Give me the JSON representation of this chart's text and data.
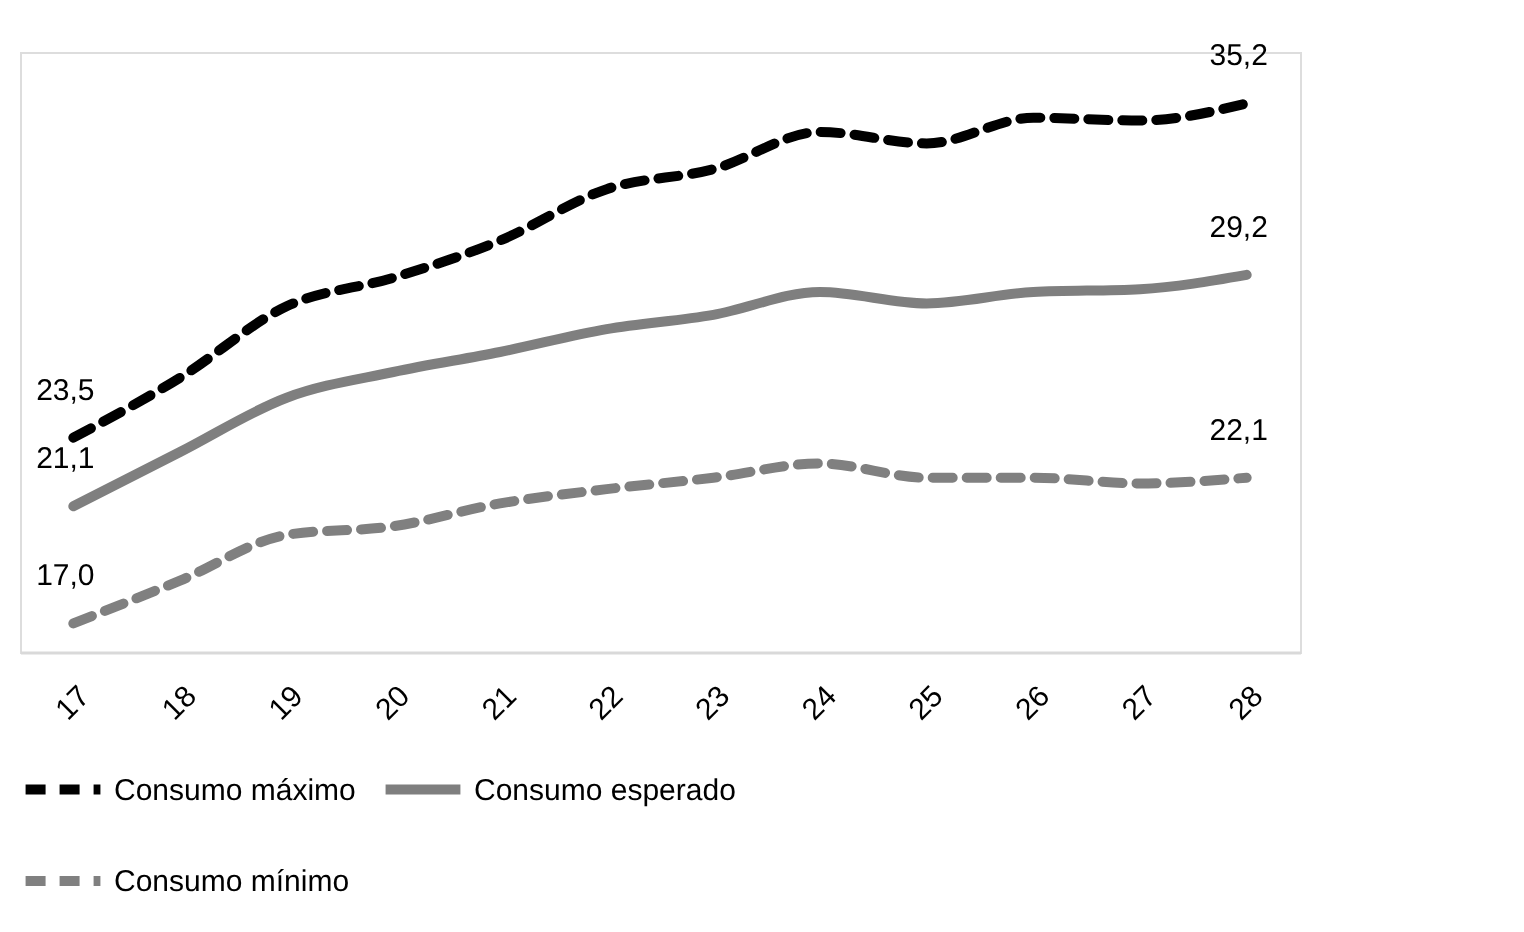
{
  "chart_data": {
    "type": "line",
    "categories": [
      "17",
      "18",
      "19",
      "20",
      "21",
      "22",
      "23",
      "24",
      "25",
      "26",
      "27",
      "28"
    ],
    "ylim": [
      16,
      37
    ],
    "tick_labels": "x",
    "grid": false,
    "legend": "bottom",
    "series": [
      {
        "name": "Consumo máximo",
        "color": "#000000",
        "line_style": "dashed",
        "values": [
          23.5,
          25.6,
          28.1,
          29.1,
          30.4,
          32.2,
          32.9,
          34.2,
          33.8,
          34.7,
          34.6,
          35.2
        ],
        "value_labels": [
          "23,5",
          null,
          null,
          null,
          null,
          null,
          null,
          null,
          null,
          null,
          null,
          "35,2"
        ]
      },
      {
        "name": "Consumo esperado",
        "color": "#7f7f7f",
        "line_style": "solid",
        "values": [
          21.1,
          23.0,
          24.9,
          25.8,
          26.5,
          27.3,
          27.8,
          28.6,
          28.2,
          28.6,
          28.7,
          29.2
        ],
        "value_labels": [
          "21,1",
          null,
          null,
          null,
          null,
          null,
          null,
          null,
          null,
          null,
          null,
          "29,2"
        ]
      },
      {
        "name": "Consumo mínimo",
        "color": "#808080",
        "line_style": "dashed",
        "values": [
          17.0,
          18.5,
          20.1,
          20.4,
          21.2,
          21.7,
          22.1,
          22.6,
          22.1,
          22.1,
          21.9,
          22.1
        ],
        "value_labels": [
          "17,0",
          null,
          null,
          null,
          null,
          null,
          null,
          null,
          null,
          null,
          null,
          "22,1"
        ]
      }
    ]
  }
}
